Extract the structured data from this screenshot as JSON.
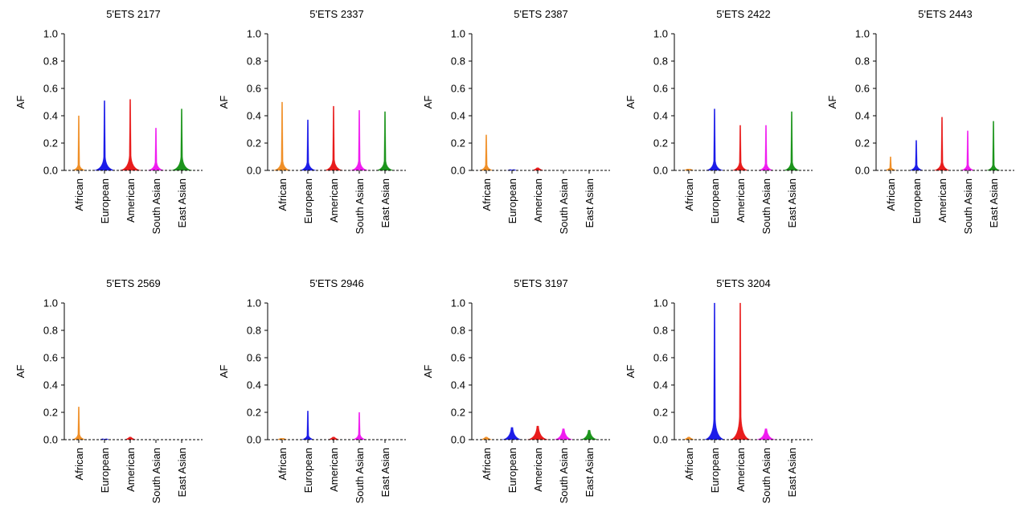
{
  "chart_data": {
    "type": "violin",
    "ylabel": "AF",
    "ylim": [
      0,
      1.0
    ],
    "yticks": [
      "0.0",
      "0.2",
      "0.4",
      "0.6",
      "0.8",
      "1.0"
    ],
    "categories": [
      "African",
      "European",
      "American",
      "South Asian",
      "East Asian"
    ],
    "colors": {
      "African": "#f08a1c",
      "European": "#1010e8",
      "American": "#e81010",
      "South Asian": "#f010f0",
      "East Asian": "#109010"
    },
    "panels": [
      {
        "title": "5'ETS 2177",
        "max": [
          0.4,
          0.51,
          0.52,
          0.31,
          0.45
        ],
        "base_height": [
          0.04,
          0.1,
          0.11,
          0.06,
          0.1
        ]
      },
      {
        "title": "5'ETS 2337",
        "max": [
          0.5,
          0.37,
          0.47,
          0.44,
          0.43
        ],
        "base_height": [
          0.07,
          0.06,
          0.08,
          0.07,
          0.07
        ]
      },
      {
        "title": "5'ETS 2387",
        "max": [
          0.26,
          0.0,
          0.02,
          0.0,
          0.0
        ],
        "base_height": [
          0.04,
          0.005,
          0.02,
          0.0,
          0.0
        ]
      },
      {
        "title": "5'ETS 2422",
        "max": [
          0.01,
          0.45,
          0.33,
          0.33,
          0.43
        ],
        "base_height": [
          0.01,
          0.07,
          0.06,
          0.05,
          0.06
        ]
      },
      {
        "title": "5'ETS 2443",
        "max": [
          0.1,
          0.22,
          0.39,
          0.29,
          0.36
        ],
        "base_height": [
          0.02,
          0.04,
          0.06,
          0.04,
          0.04
        ]
      },
      {
        "title": "5'ETS 2569",
        "max": [
          0.24,
          0.0,
          0.02,
          0.0,
          0.0
        ],
        "base_height": [
          0.04,
          0.005,
          0.02,
          0.0,
          0.0
        ]
      },
      {
        "title": "5'ETS 2946",
        "max": [
          0.01,
          0.21,
          0.02,
          0.2,
          0.0
        ],
        "base_height": [
          0.01,
          0.03,
          0.02,
          0.04,
          0.0
        ]
      },
      {
        "title": "5'ETS 3197",
        "max": [
          0.02,
          0.09,
          0.1,
          0.08,
          0.07
        ],
        "base_height": [
          0.02,
          0.09,
          0.1,
          0.08,
          0.07
        ]
      },
      {
        "title": "5'ETS 3204",
        "max": [
          0.02,
          1.0,
          1.0,
          0.08,
          0.0
        ],
        "base_height": [
          0.02,
          0.15,
          0.17,
          0.08,
          0.0
        ]
      }
    ]
  }
}
